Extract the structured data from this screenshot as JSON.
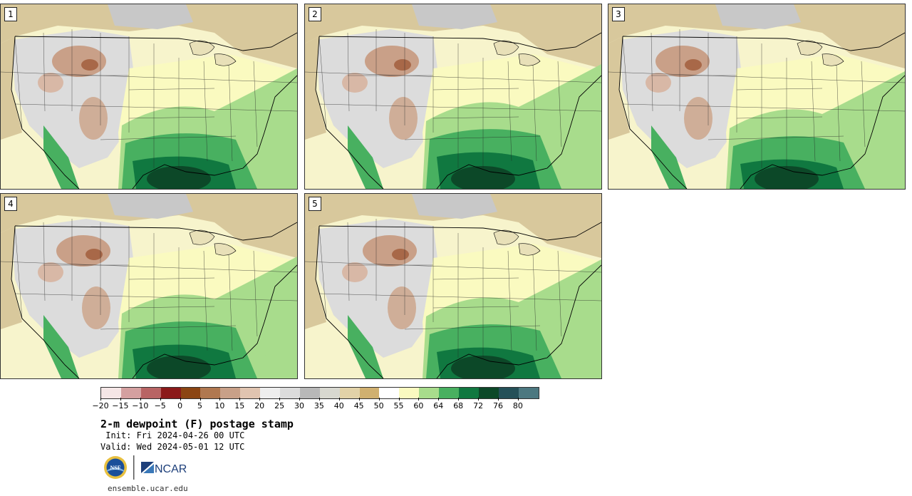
{
  "panels": [
    {
      "number": "1"
    },
    {
      "number": "2"
    },
    {
      "number": "3"
    },
    {
      "number": "4"
    },
    {
      "number": "5"
    }
  ],
  "colorbar": {
    "colors": [
      "#f5e6e6",
      "#d4a0a0",
      "#b86464",
      "#8b1a1a",
      "#8b4513",
      "#b07850",
      "#c8a088",
      "#e0c4b0",
      "#eeeeee",
      "#dcdcdc",
      "#b8b8b8",
      "#d8d8d0",
      "#e2d2a8",
      "#d0b070",
      "#ffffff",
      "#fafac0",
      "#a8dc8c",
      "#48b060",
      "#107840",
      "#0c4828",
      "#245058",
      "#4c7880"
    ],
    "tick_labels": [
      "−20",
      "−15",
      "−10",
      "−5",
      "0",
      "5",
      "10",
      "15",
      "20",
      "25",
      "30",
      "35",
      "40",
      "45",
      "50",
      "55",
      "60",
      "64",
      "68",
      "72",
      "76",
      "80"
    ]
  },
  "title": "2-m dewpoint (F) postage stamp",
  "init": " Init: Fri 2024-04-26 00 UTC",
  "valid": "Valid: Wed 2024-05-01 12 UTC",
  "logos": {
    "nsf": "NSF",
    "ncar": "NCAR"
  },
  "site": "ensemble.ucar.edu"
}
